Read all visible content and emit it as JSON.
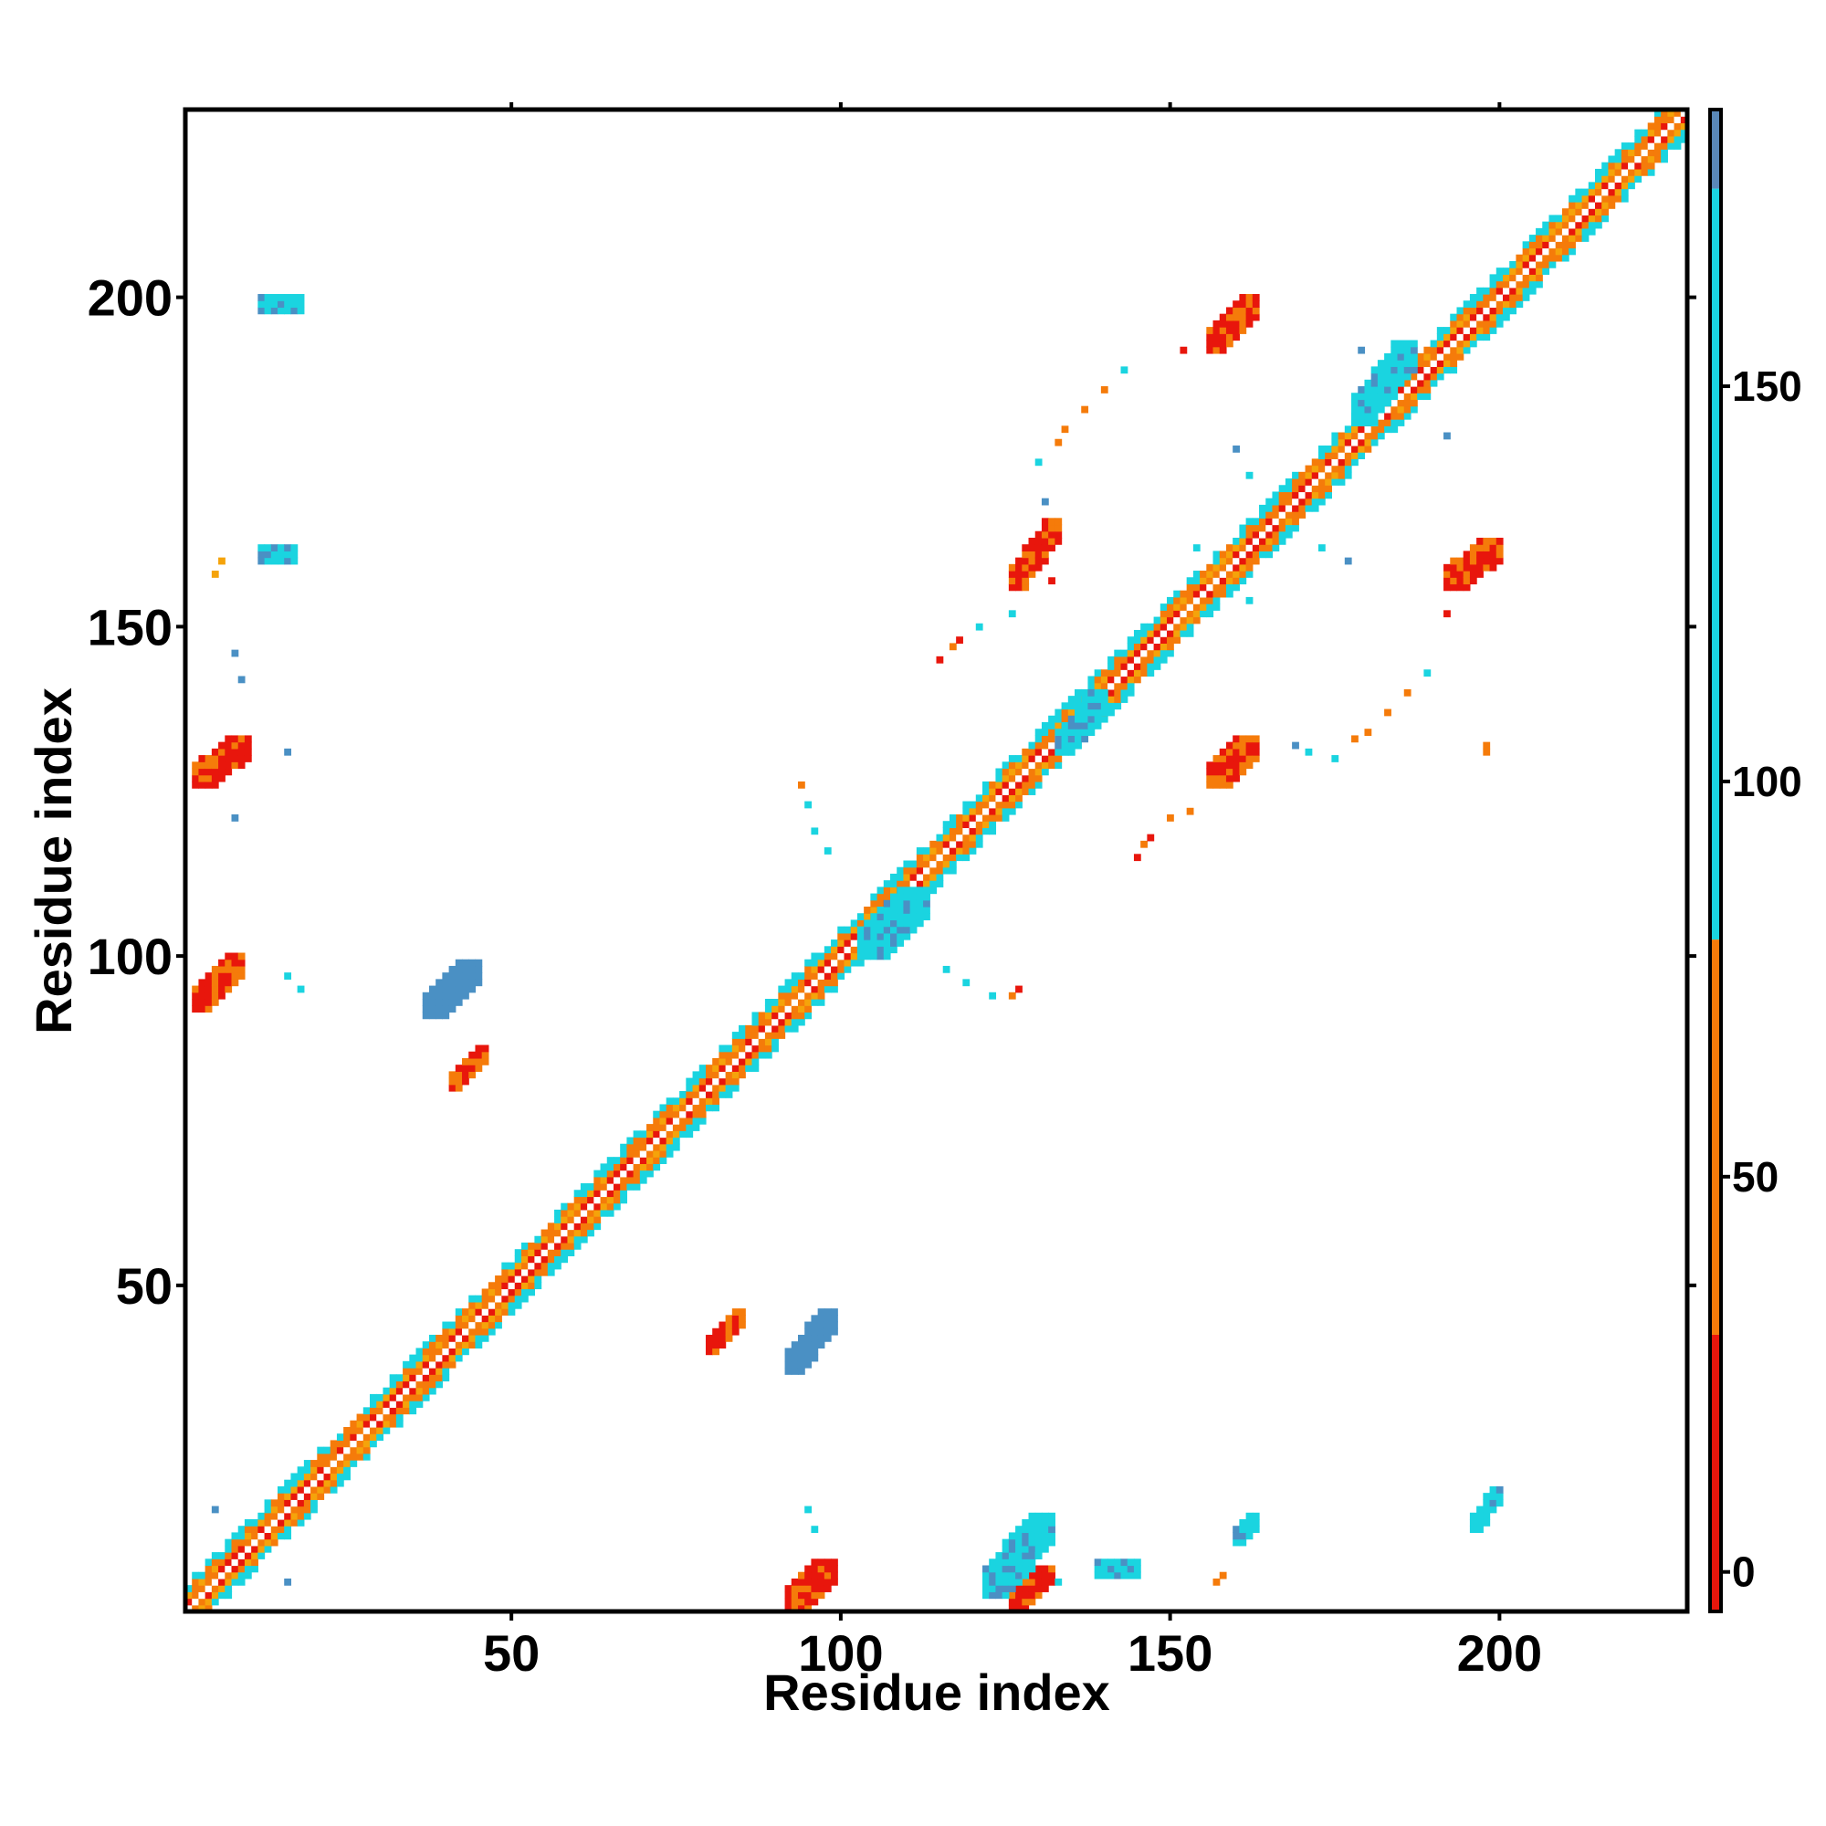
{
  "chart_data": {
    "type": "heatmap",
    "title": "",
    "xlabel": "Residue index",
    "ylabel": "Residue index",
    "xlim": [
      1,
      228
    ],
    "ylim": [
      1,
      228
    ],
    "x_ticks": [
      50,
      100,
      150,
      200
    ],
    "y_ticks": [
      50,
      100,
      150,
      200
    ],
    "grid": false,
    "colorbar": {
      "range": [
        -5,
        185
      ],
      "ticks": [
        0,
        50,
        100,
        150
      ],
      "segments": [
        {
          "from": -5,
          "to": 30,
          "color": "#e8160c"
        },
        {
          "from": 30,
          "to": 80,
          "color": "#f57b0a"
        },
        {
          "from": 80,
          "to": 175,
          "color": "#1ad4e0"
        },
        {
          "from": 175,
          "to": 185,
          "color": "#5a88b8"
        }
      ],
      "top_color": "#ffffff"
    },
    "palette": {
      "red": "#e8160c",
      "orange": "#f57b0a",
      "amber": "#f5a30a",
      "cyan": "#1ad4e0",
      "steelblue": "#4a90c4"
    },
    "diagonal_band": {
      "start": 1,
      "end": 228,
      "half_width": 4
    },
    "clusters": [
      {
        "x": [
          92,
          99
        ],
        "y": [
          1,
          8
        ],
        "color": "red"
      },
      {
        "x": [
          126,
          132
        ],
        "y": [
          1,
          7
        ],
        "color": "red"
      },
      {
        "x": [
          122,
          132
        ],
        "y": [
          3,
          15
        ],
        "color": "cyan"
      },
      {
        "x": [
          80,
          85
        ],
        "y": [
          40,
          46
        ],
        "color": "red"
      },
      {
        "x": [
          92,
          99
        ],
        "y": [
          37,
          46
        ],
        "color": "steelblue"
      },
      {
        "x": [
          41,
          46
        ],
        "y": [
          80,
          86
        ],
        "color": "red"
      },
      {
        "x": [
          37,
          45
        ],
        "y": [
          91,
          99
        ],
        "color": "steelblue"
      },
      {
        "x": [
          2,
          9
        ],
        "y": [
          92,
          100
        ],
        "color": "red"
      },
      {
        "x": [
          2,
          10
        ],
        "y": [
          126,
          133
        ],
        "color": "red"
      },
      {
        "x": [
          126,
          133
        ],
        "y": [
          156,
          166
        ],
        "color": "red"
      },
      {
        "x": [
          156,
          163
        ],
        "y": [
          126,
          133
        ],
        "color": "red"
      },
      {
        "x": [
          156,
          163
        ],
        "y": [
          192,
          200
        ],
        "color": "red"
      },
      {
        "x": [
          192,
          200
        ],
        "y": [
          156,
          163
        ],
        "color": "red"
      },
      {
        "x": [
          12,
          18
        ],
        "y": [
          198,
          200
        ],
        "color": "cyan"
      },
      {
        "x": [
          12,
          17
        ],
        "y": [
          160,
          162
        ],
        "color": "cyan"
      },
      {
        "x": [
          196,
          200
        ],
        "y": [
          13,
          19
        ],
        "color": "cyan"
      },
      {
        "x": [
          160,
          163
        ],
        "y": [
          11,
          15
        ],
        "color": "cyan"
      },
      {
        "x": [
          139,
          145
        ],
        "y": [
          6,
          8
        ],
        "color": "cyan"
      },
      {
        "x": [
          178,
          187
        ],
        "y": [
          181,
          193
        ],
        "color": "cyan"
      },
      {
        "x": [
          103,
          113
        ],
        "y": [
          100,
          110
        ],
        "color": "cyan"
      },
      {
        "x": [
          133,
          140
        ],
        "y": [
          131,
          140
        ],
        "color": "cyan"
      }
    ],
    "scatter_points": [
      {
        "x": 157,
        "y": 5,
        "color": "orange"
      },
      {
        "x": 158,
        "y": 6,
        "color": "orange"
      },
      {
        "x": 132,
        "y": 157,
        "color": "red"
      },
      {
        "x": 198,
        "y": 132,
        "color": "orange"
      },
      {
        "x": 198,
        "y": 131,
        "color": "orange"
      },
      {
        "x": 5,
        "y": 158,
        "color": "amber"
      },
      {
        "x": 6,
        "y": 160,
        "color": "amber"
      },
      {
        "x": 16,
        "y": 97,
        "color": "cyan"
      },
      {
        "x": 18,
        "y": 95,
        "color": "cyan"
      },
      {
        "x": 126,
        "y": 94,
        "color": "orange"
      },
      {
        "x": 127,
        "y": 95,
        "color": "red"
      },
      {
        "x": 123,
        "y": 94,
        "color": "cyan"
      },
      {
        "x": 116,
        "y": 98,
        "color": "cyan"
      },
      {
        "x": 119,
        "y": 96,
        "color": "cyan"
      },
      {
        "x": 94,
        "y": 126,
        "color": "orange"
      },
      {
        "x": 95,
        "y": 123,
        "color": "cyan"
      },
      {
        "x": 96,
        "y": 119,
        "color": "cyan"
      },
      {
        "x": 98,
        "y": 116,
        "color": "cyan"
      },
      {
        "x": 145,
        "y": 115,
        "color": "red"
      },
      {
        "x": 146,
        "y": 117,
        "color": "orange"
      },
      {
        "x": 147,
        "y": 118,
        "color": "red"
      },
      {
        "x": 150,
        "y": 121,
        "color": "orange"
      },
      {
        "x": 153,
        "y": 122,
        "color": "orange"
      },
      {
        "x": 115,
        "y": 145,
        "color": "red"
      },
      {
        "x": 117,
        "y": 147,
        "color": "orange"
      },
      {
        "x": 118,
        "y": 148,
        "color": "red"
      },
      {
        "x": 121,
        "y": 150,
        "color": "cyan"
      },
      {
        "x": 126,
        "y": 152,
        "color": "cyan"
      },
      {
        "x": 130,
        "y": 175,
        "color": "cyan"
      },
      {
        "x": 133,
        "y": 178,
        "color": "orange"
      },
      {
        "x": 134,
        "y": 180,
        "color": "orange"
      },
      {
        "x": 137,
        "y": 183,
        "color": "orange"
      },
      {
        "x": 140,
        "y": 186,
        "color": "orange"
      },
      {
        "x": 143,
        "y": 189,
        "color": "cyan"
      },
      {
        "x": 175,
        "y": 130,
        "color": "cyan"
      },
      {
        "x": 178,
        "y": 133,
        "color": "orange"
      },
      {
        "x": 180,
        "y": 134,
        "color": "orange"
      },
      {
        "x": 183,
        "y": 137,
        "color": "orange"
      },
      {
        "x": 186,
        "y": 140,
        "color": "orange"
      },
      {
        "x": 189,
        "y": 143,
        "color": "cyan"
      },
      {
        "x": 171,
        "y": 131,
        "color": "cyan"
      },
      {
        "x": 169,
        "y": 132,
        "color": "steelblue"
      },
      {
        "x": 131,
        "y": 169,
        "color": "steelblue"
      },
      {
        "x": 162,
        "y": 173,
        "color": "cyan"
      },
      {
        "x": 160,
        "y": 177,
        "color": "steelblue"
      },
      {
        "x": 173,
        "y": 162,
        "color": "cyan"
      },
      {
        "x": 177,
        "y": 160,
        "color": "steelblue"
      },
      {
        "x": 192,
        "y": 179,
        "color": "steelblue"
      },
      {
        "x": 179,
        "y": 192,
        "color": "steelblue"
      },
      {
        "x": 152,
        "y": 192,
        "color": "red"
      },
      {
        "x": 192,
        "y": 152,
        "color": "red"
      },
      {
        "x": 16,
        "y": 131,
        "color": "steelblue"
      },
      {
        "x": 8,
        "y": 121,
        "color": "steelblue"
      },
      {
        "x": 8,
        "y": 146,
        "color": "steelblue"
      },
      {
        "x": 9,
        "y": 142,
        "color": "steelblue"
      },
      {
        "x": 130,
        "y": 9,
        "color": "cyan"
      },
      {
        "x": 133,
        "y": 5,
        "color": "cyan"
      },
      {
        "x": 162,
        "y": 154,
        "color": "cyan"
      },
      {
        "x": 154,
        "y": 162,
        "color": "cyan"
      },
      {
        "x": 95,
        "y": 16,
        "color": "cyan"
      },
      {
        "x": 96,
        "y": 13,
        "color": "cyan"
      },
      {
        "x": 16,
        "y": 5,
        "color": "steelblue"
      },
      {
        "x": 5,
        "y": 16,
        "color": "steelblue"
      }
    ]
  }
}
